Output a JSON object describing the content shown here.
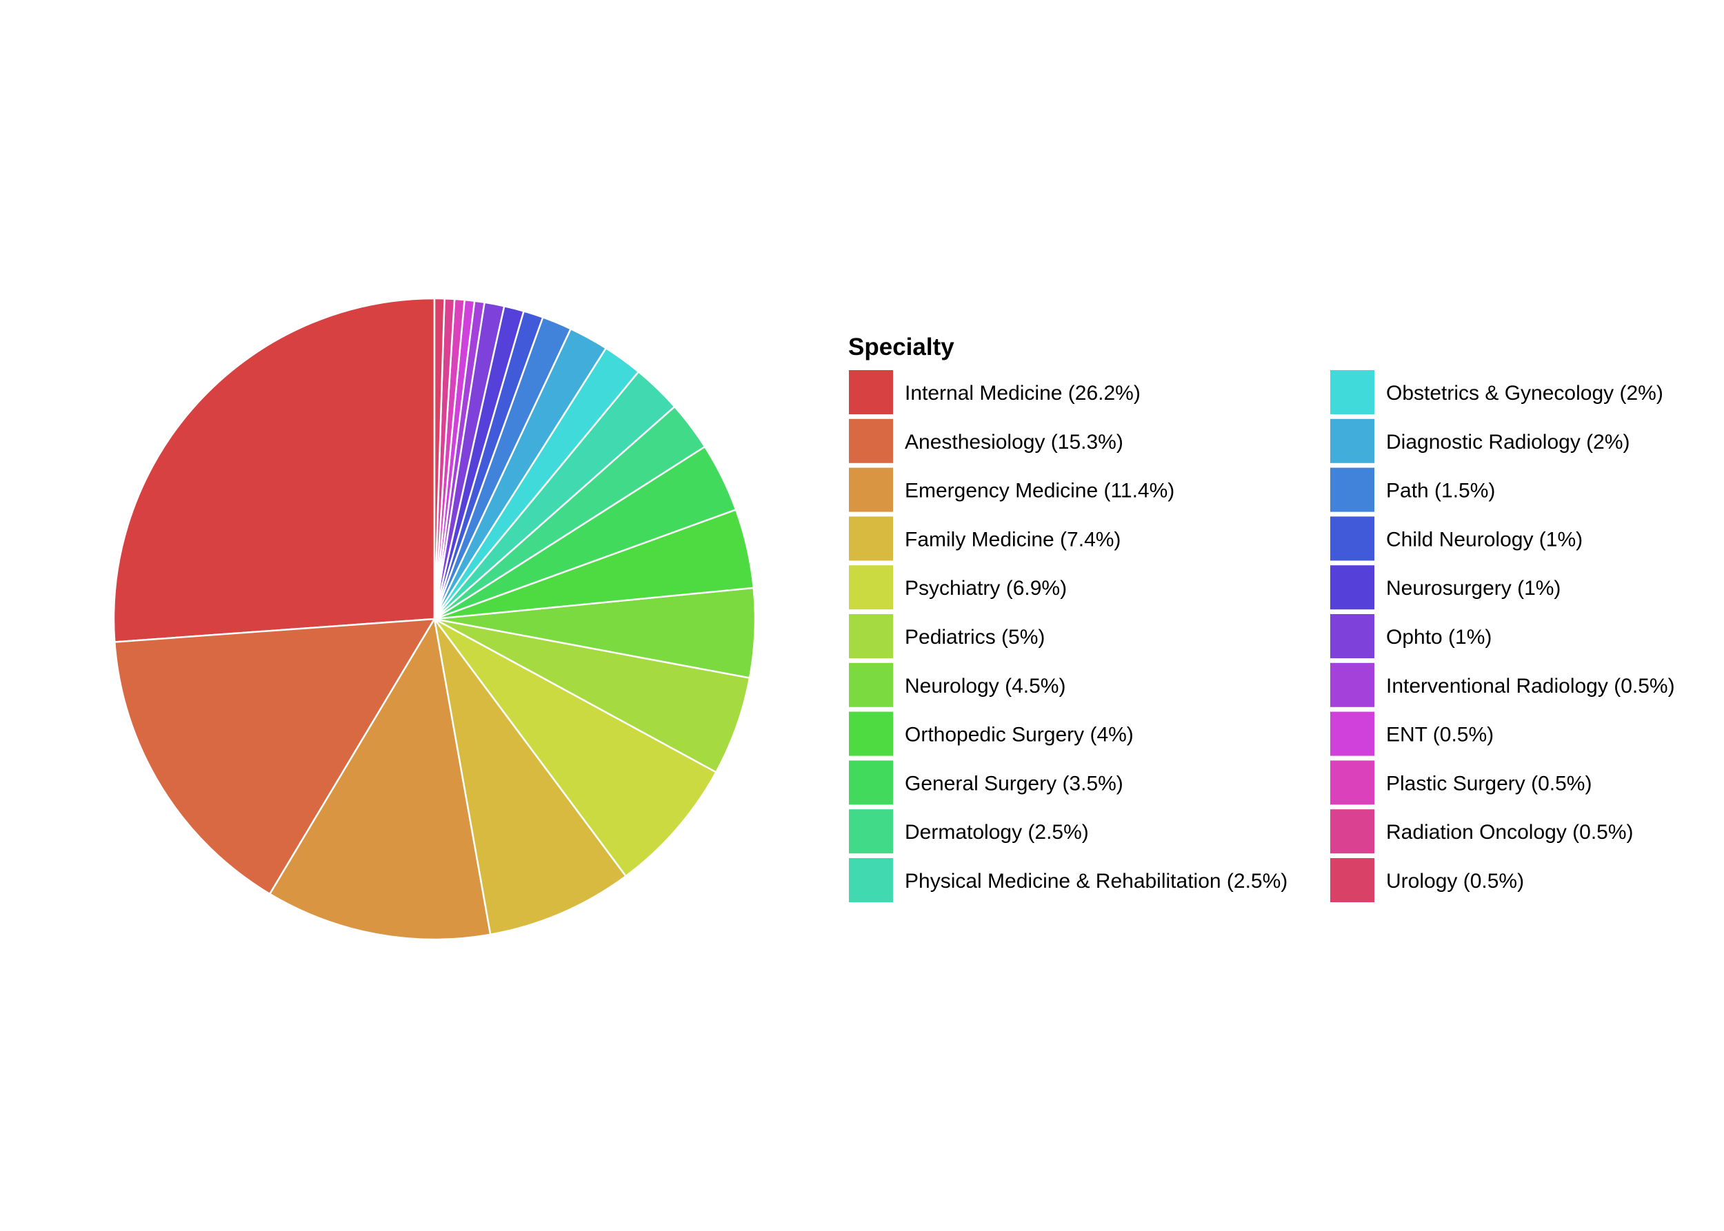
{
  "chart_data": {
    "type": "pie",
    "legend_title": "Specialty",
    "legend_position": "right",
    "start_angle": "12 o'clock",
    "direction": "counterclockwise",
    "slice_border_color": "#ffffff",
    "slices": [
      {
        "label": "Internal Medicine (26.2%)",
        "value": 26.2,
        "color": "#D84141"
      },
      {
        "label": "Anesthesiology (15.3%)",
        "value": 15.3,
        "color": "#D96943"
      },
      {
        "label": "Emergency Medicine (11.4%)",
        "value": 11.4,
        "color": "#D99541"
      },
      {
        "label": "Family Medicine (7.4%)",
        "value": 7.4,
        "color": "#D9BA41"
      },
      {
        "label": "Psychiatry (6.9%)",
        "value": 6.9,
        "color": "#CBDA41"
      },
      {
        "label": "Pediatrics (5%)",
        "value": 5,
        "color": "#A5DA41"
      },
      {
        "label": "Neurology (4.5%)",
        "value": 4.5,
        "color": "#7CDA41"
      },
      {
        "label": "Orthopedic Surgery (4%)",
        "value": 4,
        "color": "#4EDA41"
      },
      {
        "label": "General Surgery (3.5%)",
        "value": 3.5,
        "color": "#41DA5C"
      },
      {
        "label": "Dermatology (2.5%)",
        "value": 2.5,
        "color": "#41DA88"
      },
      {
        "label": "Physical Medicine & Rehabilitation (2.5%)",
        "value": 2.5,
        "color": "#41DAB0"
      },
      {
        "label": "Obstetrics & Gynecology (2%)",
        "value": 2,
        "color": "#41DADA"
      },
      {
        "label": "Diagnostic Radiology (2%)",
        "value": 2,
        "color": "#41ADDA"
      },
      {
        "label": "Path (1.5%)",
        "value": 1.5,
        "color": "#4183DA"
      },
      {
        "label": "Child Neurology (1%)",
        "value": 1,
        "color": "#415ADA"
      },
      {
        "label": "Neurosurgery (1%)",
        "value": 1,
        "color": "#5541DA"
      },
      {
        "label": "Ophto (1%)",
        "value": 1,
        "color": "#7E41DA"
      },
      {
        "label": "Interventional Radiology (0.5%)",
        "value": 0.5,
        "color": "#A441DA"
      },
      {
        "label": "ENT (0.5%)",
        "value": 0.5,
        "color": "#CF41DA"
      },
      {
        "label": "Plastic Surgery (0.5%)",
        "value": 0.5,
        "color": "#DA41BB"
      },
      {
        "label": "Radiation Oncology (0.5%)",
        "value": 0.5,
        "color": "#DA4191"
      },
      {
        "label": "Urology (0.5%)",
        "value": 0.5,
        "color": "#DA4166"
      }
    ]
  }
}
